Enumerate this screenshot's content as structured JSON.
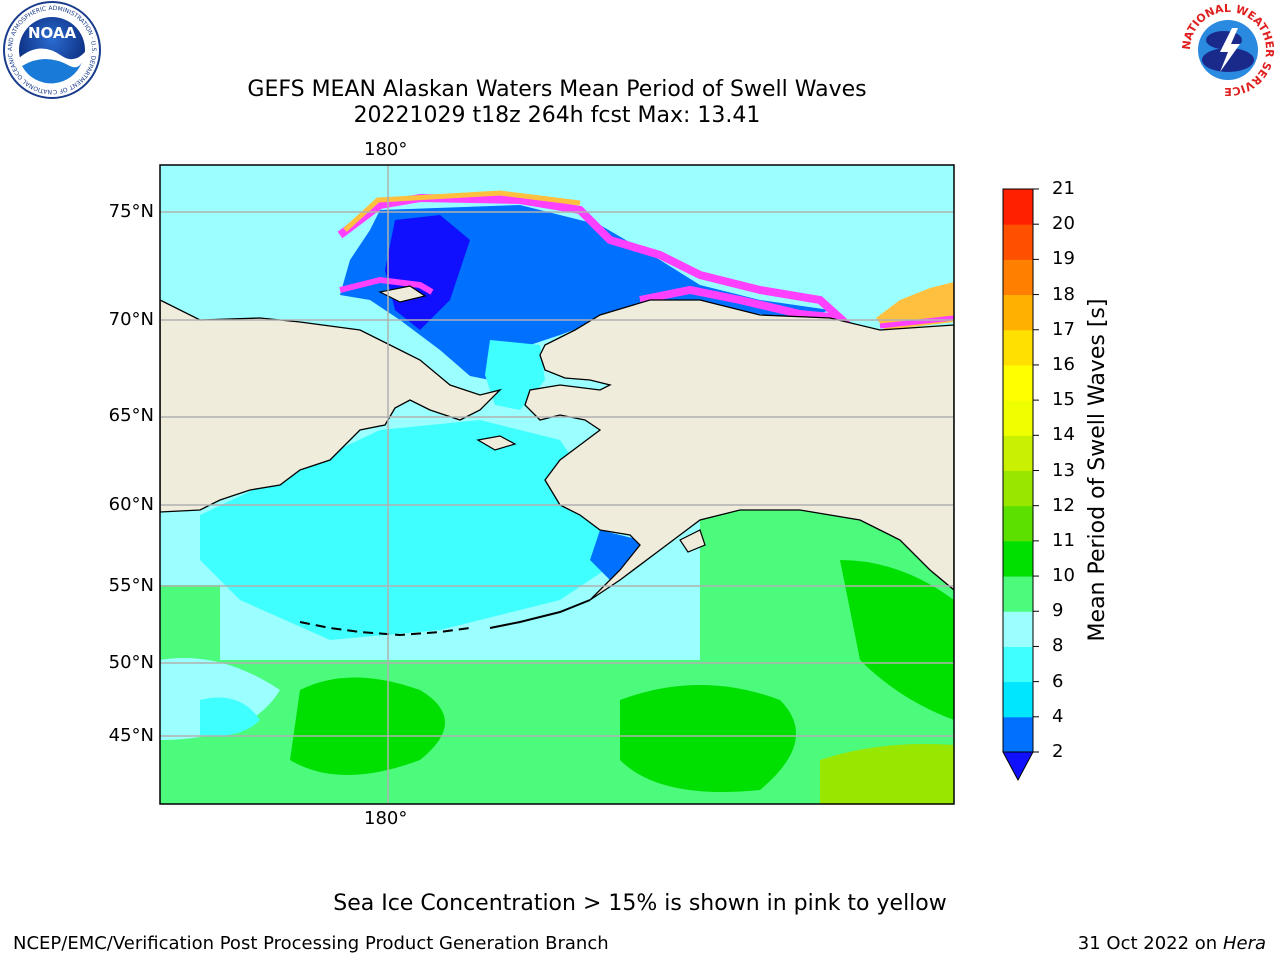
{
  "title": {
    "line1": "GEFS MEAN Alaskan Waters Mean Period of Swell Waves",
    "line2": "20221029 t18z 264h fcst   Max: 13.41"
  },
  "map": {
    "longitude_label_top": "180°",
    "longitude_label_bottom": "180°",
    "latitude_labels": [
      "75°N",
      "70°N",
      "65°N",
      "60°N",
      "55°N",
      "50°N",
      "45°N"
    ],
    "colors": {
      "land": "#efecdc",
      "ice_pink": "#ff40ff",
      "ice_orange": "#ffc040",
      "ice_yellow": "#ffe870",
      "grid": "#b0b0b0"
    }
  },
  "colorbar": {
    "title": "Mean Period of Swell Waves [s]",
    "ticks": [
      "2",
      "4",
      "6",
      "8",
      "9",
      "10",
      "11",
      "12",
      "13",
      "14",
      "15",
      "16",
      "17",
      "18",
      "19",
      "20",
      "21"
    ],
    "colors": [
      "#0070ff",
      "#00e6ff",
      "#40ffff",
      "#9cffff",
      "#4cfa7c",
      "#00e000",
      "#5ce000",
      "#99e600",
      "#c8f000",
      "#f0ff00",
      "#ffff00",
      "#ffe000",
      "#ffb000",
      "#ff8000",
      "#ff5000",
      "#ff2000",
      "#ff0000"
    ],
    "extend_color": "#1010ff"
  },
  "footer": {
    "note": "Sea Ice Concentration > 15% is shown in pink to yellow",
    "left": "NCEP/EMC/Verification Post Processing Product Generation Branch",
    "date": "31 Oct 2022 on",
    "machine": "Hera"
  },
  "logos": {
    "noaa_text": "NOAA",
    "noaa_ring": "NATIONAL OCEANIC AND ATMOSPHERIC ADMINISTRATION · U.S. DEPARTMENT OF COMMERCE",
    "nws_ring": "NATIONAL WEATHER SERVICE"
  }
}
